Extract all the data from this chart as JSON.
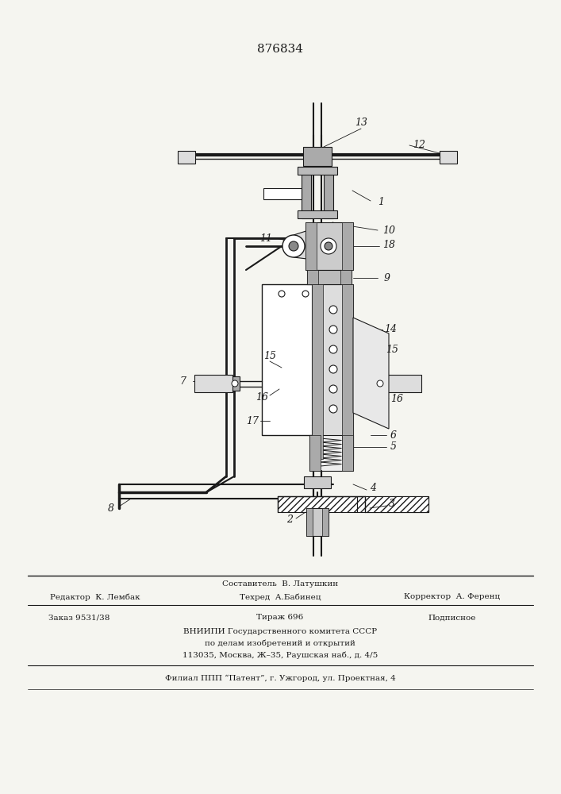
{
  "title": "876834",
  "bg_color": "#f5f5f0",
  "line_color": "#1a1a1a",
  "footer": {
    "editor": "Редактор  К. Лембак",
    "composer": "Составитель  В. Латушкин",
    "techred": "Техред  А.Бабинец",
    "corrector": "Корректор  А. Ференц",
    "order": "Заказ 9531/38",
    "circulation": "Тираж 696",
    "subscription": "Подписное",
    "vniiipi_line1": "ВНИИПИ Государственного комитета СССР",
    "vniiipi_line2": "по делам изобретений и открытий",
    "vniiipi_line3": "113035, Москва, Ж–35, Раушская наб., д. 4/5",
    "filial": "Филиал ППП “Патент”, г. Ужгород, ул. Проектная, 4"
  }
}
